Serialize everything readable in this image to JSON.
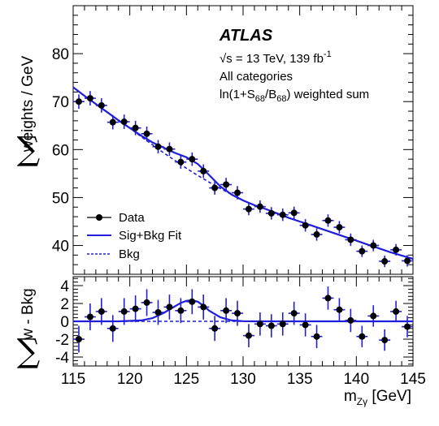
{
  "chart_data": [
    {
      "type": "scatter",
      "panel": "main",
      "ylabel": "weights / GeV",
      "ylabel_prefix": "∑",
      "ylim": [
        34,
        90
      ],
      "yticks": [
        40,
        50,
        60,
        70,
        80
      ],
      "xlim": [
        115,
        145
      ],
      "grid": false,
      "legend_position": "bottom-left",
      "annotations": {
        "experiment": "ATLAS",
        "energy": "√s = 13 TeV, 139 fb",
        "energy_sup": "-1",
        "categories": "All categories",
        "weighting_a": "ln(1+S",
        "weighting_sub1": "68",
        "weighting_b": "/B",
        "weighting_sub2": "68",
        "weighting_c": ") weighted sum"
      },
      "legend": [
        "Data",
        "Sig+Bkg Fit",
        "Bkg"
      ],
      "series": [
        {
          "name": "Data",
          "style": "points",
          "color": "#000000",
          "x": [
            115.5,
            116.5,
            117.5,
            118.5,
            119.5,
            120.5,
            121.5,
            122.5,
            123.5,
            124.5,
            125.5,
            126.5,
            127.5,
            128.5,
            129.5,
            130.5,
            131.5,
            132.5,
            133.5,
            134.5,
            135.5,
            136.5,
            137.5,
            138.5,
            139.5,
            140.5,
            141.5,
            142.5,
            143.5,
            144.5
          ],
          "y": [
            70.0,
            70.7,
            69.2,
            65.7,
            65.8,
            64.5,
            63.3,
            60.6,
            60.1,
            57.4,
            58.0,
            55.5,
            52.0,
            52.7,
            51.0,
            47.6,
            48.1,
            46.7,
            46.4,
            46.8,
            44.2,
            42.3,
            45.2,
            43.8,
            41.2,
            38.8,
            40.0,
            36.7,
            39.1,
            36.8
          ],
          "yerr": [
            1.5,
            1.5,
            1.5,
            1.5,
            1.5,
            1.5,
            1.5,
            1.4,
            1.4,
            1.4,
            1.4,
            1.4,
            1.4,
            1.4,
            1.4,
            1.3,
            1.3,
            1.3,
            1.3,
            1.3,
            1.3,
            1.3,
            1.3,
            1.3,
            1.3,
            1.2,
            1.2,
            1.2,
            1.2,
            1.2
          ]
        },
        {
          "name": "Sig+Bkg Fit",
          "style": "solid",
          "color": "#1f1fdc",
          "x": [
            115,
            116,
            117,
            118,
            119,
            120,
            121,
            122,
            123,
            124,
            125,
            126,
            127,
            128,
            129,
            130,
            131,
            132,
            133,
            134,
            135,
            136,
            137,
            138,
            139,
            140,
            141,
            142,
            143,
            144,
            145
          ],
          "y": [
            73.0,
            71.2,
            69.5,
            67.8,
            66.1,
            64.5,
            62.9,
            61.5,
            60.4,
            59.3,
            58.4,
            57.0,
            54.7,
            52.3,
            50.6,
            49.4,
            48.4,
            47.6,
            46.7,
            45.8,
            45.0,
            44.2,
            43.4,
            42.6,
            41.8,
            41.0,
            40.2,
            39.4,
            38.6,
            37.9,
            37.2
          ]
        },
        {
          "name": "Bkg",
          "style": "dashed",
          "color": "#1f1fdc",
          "x": [
            115,
            116,
            117,
            118,
            119,
            120,
            121,
            122,
            123,
            124,
            125,
            126,
            127,
            128,
            129,
            130,
            131,
            132,
            133,
            134,
            135,
            136,
            137,
            138,
            139,
            140,
            141,
            142,
            143,
            144,
            145
          ],
          "y": [
            73.0,
            71.2,
            69.5,
            67.8,
            66.1,
            64.5,
            62.7,
            61.0,
            59.3,
            57.7,
            56.1,
            54.6,
            53.2,
            51.9,
            50.6,
            49.4,
            48.4,
            47.6,
            46.7,
            45.8,
            45.0,
            44.2,
            43.4,
            42.6,
            41.8,
            41.0,
            40.2,
            39.4,
            38.6,
            37.9,
            37.2
          ]
        }
      ]
    },
    {
      "type": "scatter",
      "panel": "ratio",
      "ylabel": "w - Bkg",
      "ylabel_prefix": "∑",
      "ylim": [
        -5,
        5
      ],
      "yticks": [
        -4,
        -2,
        0,
        2,
        4
      ],
      "xlim": [
        115,
        145
      ],
      "xticks": [
        115,
        120,
        125,
        130,
        135,
        140,
        145
      ],
      "xlabel": "m",
      "xlabel_sub": "Zγ",
      "xlabel_unit": " [GeV]",
      "grid": false,
      "series": [
        {
          "name": "Data",
          "style": "points",
          "color": "#000000",
          "x": [
            115.5,
            116.5,
            117.5,
            118.5,
            119.5,
            120.5,
            121.5,
            122.5,
            123.5,
            124.5,
            125.5,
            126.5,
            127.5,
            128.5,
            129.5,
            130.5,
            131.5,
            132.5,
            133.5,
            134.5,
            135.5,
            136.5,
            137.5,
            138.5,
            139.5,
            140.5,
            141.5,
            142.5,
            143.5,
            144.5
          ],
          "y": [
            -2.0,
            0.5,
            1.1,
            -0.8,
            1.1,
            1.4,
            2.1,
            1.0,
            1.6,
            1.2,
            2.2,
            1.6,
            -0.8,
            1.2,
            0.9,
            -1.6,
            -0.3,
            -0.5,
            -0.3,
            0.9,
            -0.4,
            -1.7,
            2.6,
            1.3,
            0.1,
            -1.7,
            0.6,
            -2.1,
            1.1,
            -0.6
          ],
          "yerr": [
            1.5,
            1.5,
            1.5,
            1.5,
            1.5,
            1.5,
            1.5,
            1.4,
            1.4,
            1.4,
            1.4,
            1.4,
            1.4,
            1.4,
            1.4,
            1.3,
            1.3,
            1.3,
            1.3,
            1.3,
            1.3,
            1.3,
            1.3,
            1.3,
            1.3,
            1.2,
            1.2,
            1.2,
            1.2,
            1.2
          ]
        },
        {
          "name": "Sig+Bkg Fit",
          "style": "solid",
          "color": "#1f1fdc",
          "x": [
            115,
            119,
            121,
            122,
            123,
            124,
            124.5,
            125,
            125.5,
            126,
            126.5,
            127,
            128,
            129,
            130,
            131,
            145
          ],
          "y": [
            0,
            0,
            0.1,
            0.35,
            0.95,
            1.7,
            2.05,
            2.3,
            2.35,
            2.2,
            1.75,
            1.2,
            0.45,
            0.1,
            0.02,
            0,
            0
          ]
        },
        {
          "name": "Bkg",
          "style": "dashed",
          "color": "#1f1fdc",
          "x": [
            115,
            145
          ],
          "y": [
            0,
            0
          ]
        }
      ]
    }
  ]
}
